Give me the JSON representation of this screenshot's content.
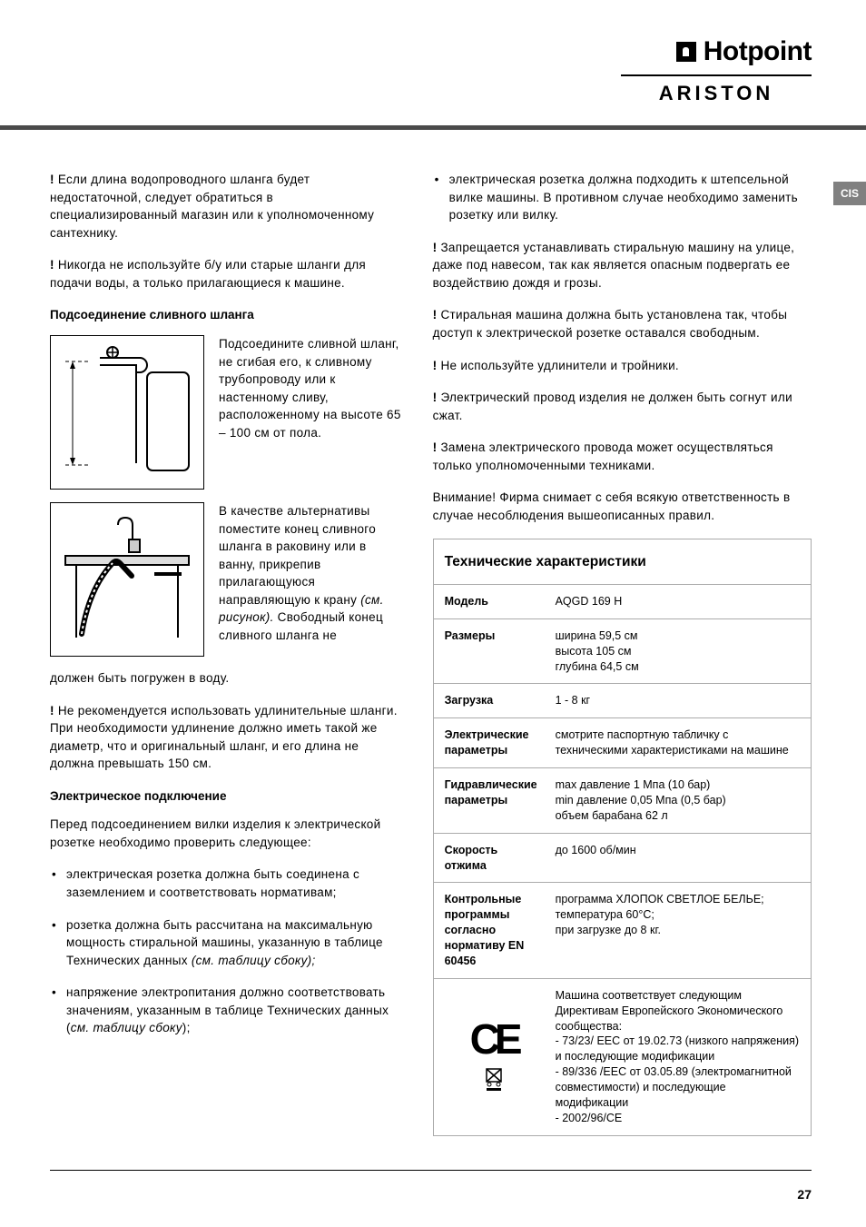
{
  "brand": {
    "hotpoint": "Hotpoint",
    "ariston": "ARISTON"
  },
  "lang_tab": "CIS",
  "page_number": "27",
  "left": {
    "warn1": "Если длина водопроводного шланга будет недостаточной, следует обратиться в специализированный магазин или к уполномоченному сантехнику.",
    "warn2": "Никогда не используйте б/у или старые шланги для подачи воды, а только прилагающиеся к машине.",
    "h_drain": "Подсоединение сливного шланга",
    "fig1_text": "Подсоедините сливной шланг, не сгибая его, к сливному трубопроводу или к настенному сливу, расположенному на высоте 65 – 100 см от пола.",
    "fig2_text_a": "В качестве альтернативы поместите конец сливного шланга в раковину или в ванну, прикрепив прилагающуюся направляющую к крану ",
    "fig2_text_italic": "(см. рисунок).",
    "fig2_text_b": " Свободный конец сливного шланга не",
    "fig2_cont": "должен быть погружен в воду.",
    "warn3": "Не рекомендуется использовать удлинительные шланги. При необходимости удлинение должно иметь такой же диаметр, что и оригинальный шланг, и его длина не должна превышать 150 см.",
    "h_elec": "Электрическое подключение",
    "elec_intro": "Перед подсоединением вилки изделия к электрической розетке необходимо проверить следующее:",
    "bullets": [
      {
        "text_a": "электрическая розетка должна быть соединена с заземлением и соответствовать нормативам;",
        "italic": ""
      },
      {
        "text_a": "розетка должна быть рассчитана на максимальную мощность стиральной машины, указанную в таблице Технических данных ",
        "italic": "(см. таблицу сбоку);"
      },
      {
        "text_a": "напряжение электропитания должно соответствовать значениям, указанным в таблице Технических данных (",
        "italic": "см. таблицу сбоку",
        "tail": ");"
      }
    ]
  },
  "right": {
    "bullet_top": "электрическая розетка должна подходить к штепсельной вилке машины. В противном случае необходимо заменить розетку или вилку.",
    "warn1": "Запрещается устанавливать стиральную машину на улице, даже под навесом, так как является опасным подвергать ее воздействию дождя и грозы.",
    "warn2": "Стиральная машина должна быть установлена так, чтобы доступ к электрической розетке оставался свободным.",
    "warn3": "Не используйте удлинители и тройники.",
    "warn4": "Электрический провод изделия не должен быть согнут или сжат.",
    "warn5": "Замена электрического провода может осуществляться только уполномоченными техниками.",
    "notice": "Внимание! Фирма снимает с себя всякую ответственность в случае несоблюдения вышеописанных правил.",
    "tech_title": "Технические характеристики",
    "rows": [
      {
        "label": "Модель",
        "value": "AQGD 169 H"
      },
      {
        "label": "Размеры",
        "value": "ширина 59,5 см\nвысота 105 см\nглубина 64,5 см"
      },
      {
        "label": "Загрузка",
        "value": "1 - 8 кг"
      },
      {
        "label": "Электрические параметры",
        "value": "смотрите паспортную табличку с техническими характеристиками на машине"
      },
      {
        "label": "Гидравлические параметры",
        "value": "max давление 1 Мпа (10 бар)\nmin давление 0,05 Мпа (0,5 бар)\nобъем барабана 62 л"
      },
      {
        "label": "Скорость отжима",
        "value": "до 1600 об/мин"
      },
      {
        "label": "Контрольные программы согласно нормативу EN 60456",
        "value": "программа ХЛОПОК СВЕТЛОЕ  БЕЛЬЕ;\nтемпература 60°C;\nпри загрузке до 8 кг."
      },
      {
        "label": "__CE__",
        "value": "Машина соответствует следующим Директивам Европейского Экономического сообщества:\n- 73/23/ ЕЕС от 19.02.73 (низкого напряжения) и последующие модификации\n- 89/336 /ЕЕС от 03.05.89 (электромагнитной совместимости) и последующие модификации\n- 2002/96/CE"
      }
    ]
  }
}
